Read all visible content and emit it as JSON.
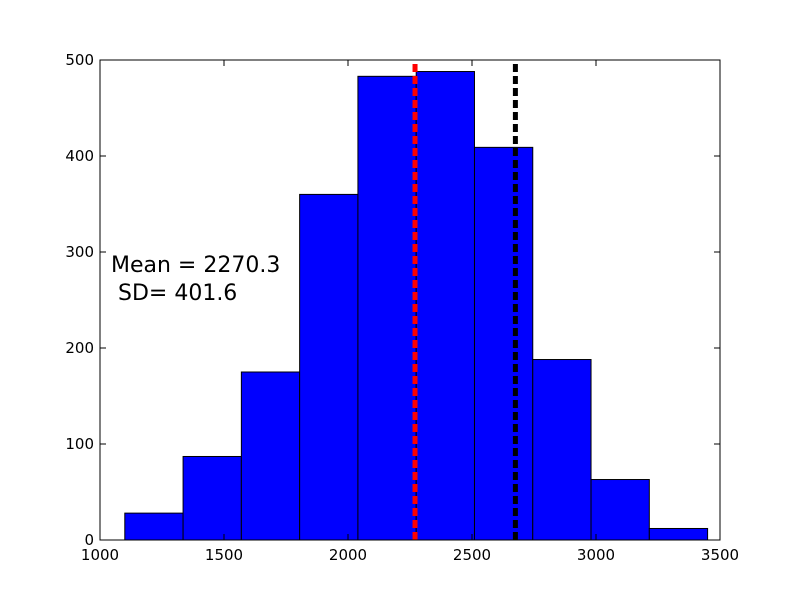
{
  "chart_data": {
    "type": "bar",
    "title": "",
    "xlabel": "",
    "ylabel": "",
    "xlim": [
      1000,
      3500
    ],
    "ylim": [
      0,
      500
    ],
    "xticks": [
      1000,
      1500,
      2000,
      2500,
      3000,
      3500
    ],
    "yticks": [
      0,
      100,
      200,
      300,
      400,
      500
    ],
    "bar_color": "#0000ff",
    "bins": [
      {
        "x0": 1100,
        "x1": 1335,
        "count": 28
      },
      {
        "x0": 1335,
        "x1": 1570,
        "count": 87
      },
      {
        "x0": 1570,
        "x1": 1805,
        "count": 175
      },
      {
        "x0": 1805,
        "x1": 2040,
        "count": 360
      },
      {
        "x0": 2040,
        "x1": 2275,
        "count": 483
      },
      {
        "x0": 2275,
        "x1": 2510,
        "count": 488
      },
      {
        "x0": 2510,
        "x1": 2745,
        "count": 409
      },
      {
        "x0": 2745,
        "x1": 2980,
        "count": 188
      },
      {
        "x0": 2980,
        "x1": 3215,
        "count": 63
      },
      {
        "x0": 3215,
        "x1": 3450,
        "count": 12
      }
    ],
    "vlines": [
      {
        "x": 2270.3,
        "color": "#ff0000",
        "style": "dashed"
      },
      {
        "x": 2675,
        "color": "#000000",
        "style": "dashed"
      }
    ],
    "annotations": [
      "Mean = 2270.3",
      " SD= 401.6"
    ],
    "grid": false
  }
}
